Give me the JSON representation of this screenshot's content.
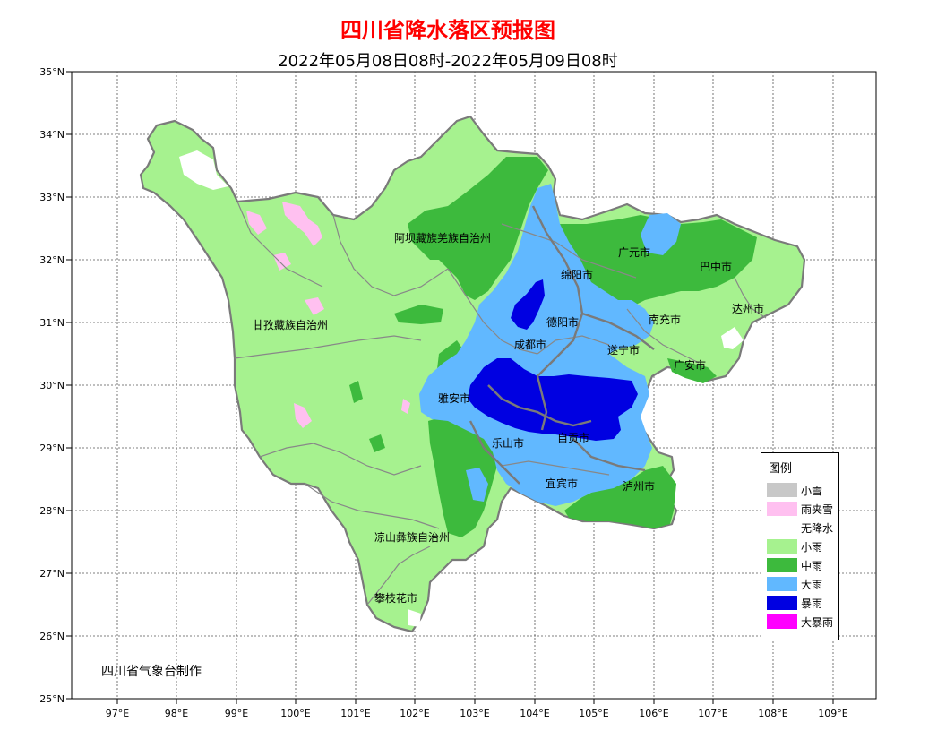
{
  "title": "四川省降水落区预报图",
  "subtitle": "2022年05月08日08时-2022年05月09日08时",
  "credit": "四川省气象台制作",
  "axes": {
    "lat_labels": [
      "35°N",
      "34°N",
      "33°N",
      "32°N",
      "31°N",
      "30°N",
      "29°N",
      "28°N",
      "27°N",
      "26°N",
      "25°N"
    ],
    "lon_labels": [
      "97°E",
      "98°E",
      "99°E",
      "100°E",
      "101°E",
      "102°E",
      "103°E",
      "104°E",
      "105°E",
      "106°E",
      "107°E",
      "108°E",
      "109°E"
    ]
  },
  "regions": [
    "阿坝藏族羌族自治州",
    "广元市",
    "巴中市",
    "绵阳市",
    "达州市",
    "南充市",
    "德阳市",
    "甘孜藏族自治州",
    "成都市",
    "遂宁市",
    "广安市",
    "雅安市",
    "乐山市",
    "自贡市",
    "宜宾市",
    "泸州市",
    "凉山彝族自治州",
    "攀枝花市"
  ],
  "legend": {
    "title": "图例",
    "items": [
      {
        "label": "小雪",
        "color": "#c8c8c8"
      },
      {
        "label": "雨夹雪",
        "color": "#ffc0f0"
      },
      {
        "label": "无降水",
        "color": "#ffffff"
      },
      {
        "label": "小雨",
        "color": "#a6f28f"
      },
      {
        "label": "中雨",
        "color": "#3dba3d"
      },
      {
        "label": "大雨",
        "color": "#61b8ff"
      },
      {
        "label": "暴雨",
        "color": "#0000e1"
      },
      {
        "label": "大暴雨",
        "color": "#ff00ff"
      }
    ]
  },
  "colors": {
    "light_rain": "#a6f28f",
    "moderate_rain": "#3dba3d",
    "heavy_rain": "#61b8ff",
    "rainstorm": "#0000e1",
    "sleet": "#ffc0f0",
    "no_rain": "#ffffff",
    "border": "#777777"
  }
}
